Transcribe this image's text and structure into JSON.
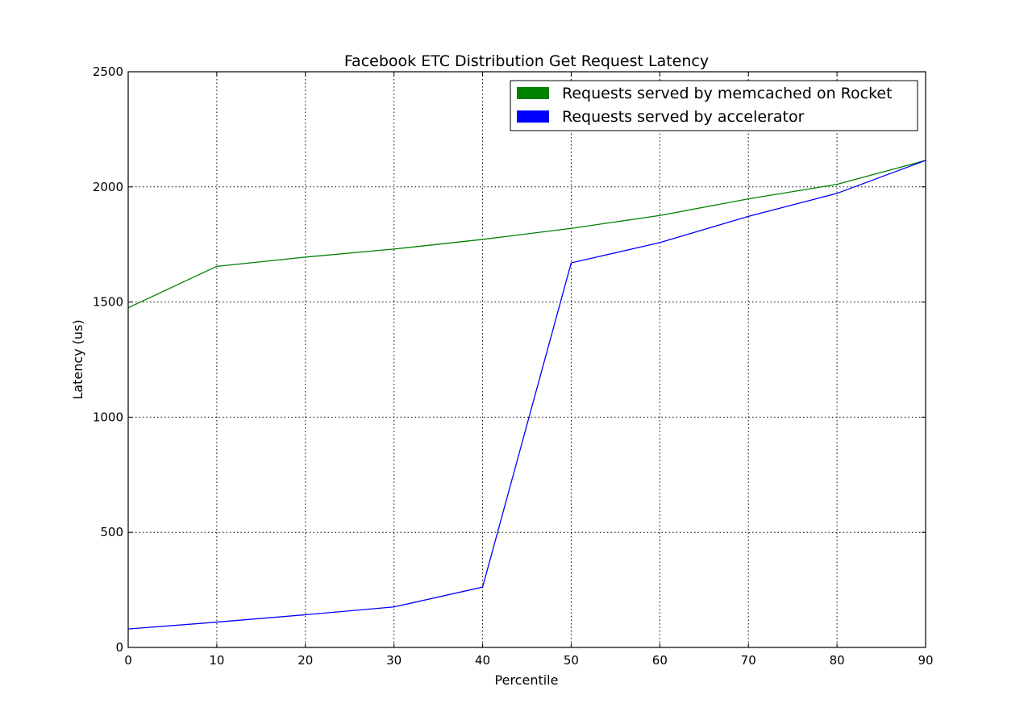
{
  "chart_data": {
    "type": "line",
    "title": "Facebook ETC Distribution Get Request Latency",
    "xlabel": "Percentile",
    "ylabel": "Latency (us)",
    "xlim": [
      0,
      90
    ],
    "ylim": [
      0,
      2500
    ],
    "xticks": [
      0,
      10,
      20,
      30,
      40,
      50,
      60,
      70,
      80,
      90
    ],
    "yticks": [
      0,
      500,
      1000,
      1500,
      2000,
      2500
    ],
    "grid": true,
    "legend_position": "top-right",
    "x": [
      0,
      10,
      20,
      30,
      40,
      50,
      60,
      70,
      80,
      90
    ],
    "series": [
      {
        "name": "Requests served by memcached on Rocket",
        "color": "#008000",
        "values": [
          1475,
          1655,
          1695,
          1730,
          1772,
          1820,
          1876,
          1948,
          2011,
          2115
        ]
      },
      {
        "name": "Requests served by accelerator",
        "color": "#0000ff",
        "values": [
          80,
          110,
          142,
          176,
          262,
          1670,
          1758,
          1872,
          1972,
          2115
        ]
      }
    ]
  }
}
